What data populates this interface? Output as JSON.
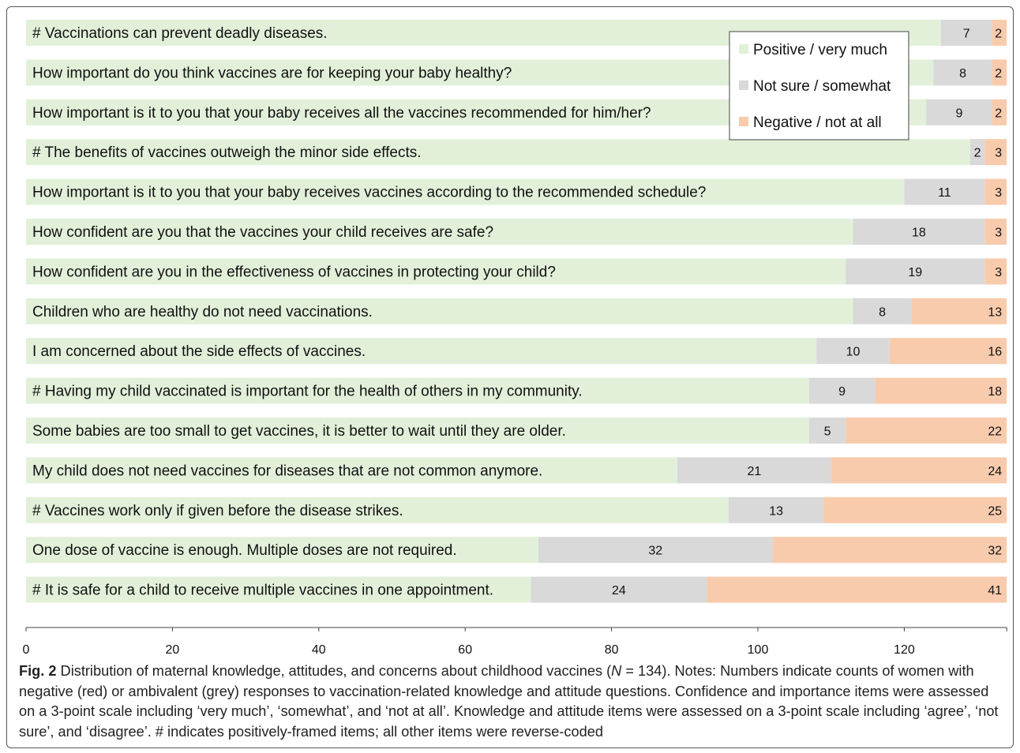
{
  "chart_data": {
    "type": "bar",
    "orientation": "horizontal",
    "stacked": true,
    "xlim": [
      0,
      134
    ],
    "xticks": [
      0,
      20,
      40,
      60,
      80,
      100,
      120
    ],
    "xtick_labels": [
      "0",
      "20",
      "40",
      "60",
      "80",
      "100",
      "120"
    ],
    "legend_position": "top-right",
    "grid": false,
    "categories": [
      "# Vaccinations can prevent deadly diseases.",
      "How important do you think vaccines are for keeping your baby healthy?",
      "How important is it to you that your baby receives all the vaccines recommended for him/her?",
      "# The benefits of vaccines outweigh the minor side effects.",
      "How important is it to you that your baby receives vaccines according to the recommended schedule?",
      "How confident are you that the vaccines your child receives are safe?",
      "How confident are you in the effectiveness of vaccines in protecting your child?",
      "Children who are healthy do not need vaccinations.",
      "I am concerned about the side effects of vaccines.",
      "# Having my child vaccinated is important for the health of others in my community.",
      "Some babies are too small to get vaccines, it is better to wait until they are older.",
      "My child does not need vaccines for diseases that are not common anymore.",
      "# Vaccines work only if given before the disease strikes.",
      "One dose of vaccine is enough. Multiple doses are not required.",
      "# It is safe for a child to receive multiple vaccines in one appointment."
    ],
    "series": [
      {
        "name": "Positive / very much",
        "color": "#e2f0d9",
        "values": [
          125,
          124,
          123,
          129,
          120,
          113,
          112,
          113,
          108,
          107,
          107,
          89,
          96,
          70,
          69
        ]
      },
      {
        "name": "Not sure / somewhat",
        "color": "#d9d9d9",
        "values": [
          7,
          8,
          9,
          2,
          11,
          18,
          19,
          8,
          10,
          9,
          5,
          21,
          13,
          32,
          24
        ]
      },
      {
        "name": "Negative / not at all",
        "color": "#f8cbad",
        "values": [
          2,
          2,
          2,
          3,
          3,
          3,
          3,
          13,
          16,
          18,
          22,
          24,
          25,
          32,
          41
        ]
      }
    ]
  },
  "caption": {
    "label": "Fig. 2",
    "text_before_n": " Distribution of maternal knowledge, attitudes, and concerns about childhood vaccines (",
    "n_symbol": "N",
    "text_after_n": " = 134). Notes: Numbers indicate counts of women with negative (red) or ambivalent (grey) responses to vaccination-related knowledge and attitude questions. Confidence and importance items were assessed on a 3-point scale including ‘very much’, ‘somewhat’, and ‘not at all’. Knowledge and attitude items were assessed on a 3-point scale including ‘agree’, ‘not sure’, and ‘disagree’. # indicates positively-framed items; all other items were reverse-coded"
  }
}
